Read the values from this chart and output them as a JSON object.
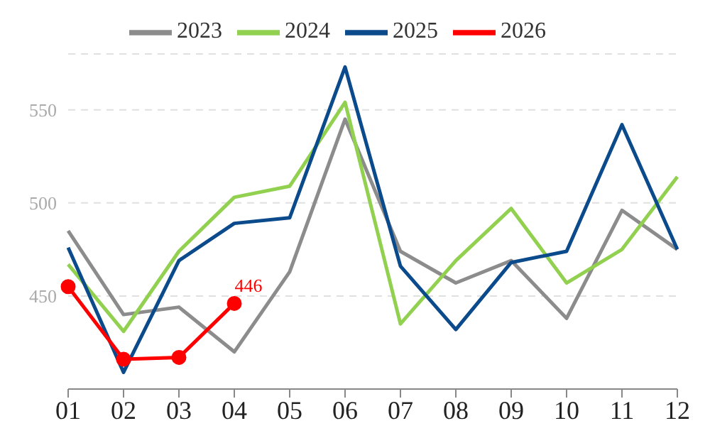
{
  "chart_data": {
    "type": "line",
    "categories": [
      "01",
      "02",
      "03",
      "04",
      "05",
      "06",
      "07",
      "08",
      "09",
      "10",
      "11",
      "12"
    ],
    "series": [
      {
        "name": "2023",
        "color": "#8c8c8c",
        "marker": "none",
        "values": [
          485,
          440,
          444,
          420,
          463,
          545,
          474,
          457,
          469,
          438,
          496,
          475
        ]
      },
      {
        "name": "2024",
        "color": "#92d050",
        "marker": "none",
        "values": [
          467,
          431,
          474,
          503,
          509,
          554,
          435,
          469,
          497,
          457,
          475,
          514
        ]
      },
      {
        "name": "2025",
        "color": "#0b4a8b",
        "marker": "none",
        "values": [
          476,
          409,
          469,
          489,
          492,
          573,
          466,
          432,
          468,
          474,
          542,
          475
        ]
      },
      {
        "name": "2026",
        "color": "#ff0000",
        "marker": "circle",
        "values": [
          455,
          416,
          417,
          446,
          null,
          null,
          null,
          null,
          null,
          null,
          null,
          null
        ],
        "value_labels": [
          null,
          null,
          null,
          "446",
          null,
          null,
          null,
          null,
          null,
          null,
          null,
          null
        ]
      }
    ],
    "ylim": [
      400,
      580
    ],
    "yticks": [
      450,
      500,
      550
    ],
    "grid": "y",
    "legend": "top",
    "line_style": "solid"
  }
}
